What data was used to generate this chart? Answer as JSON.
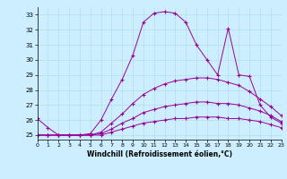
{
  "xlabel": "Windchill (Refroidissement éolien,°C)",
  "xlim": [
    0,
    23
  ],
  "ylim": [
    24.7,
    33.5
  ],
  "yticks": [
    25,
    26,
    27,
    28,
    29,
    30,
    31,
    32,
    33
  ],
  "xticks": [
    0,
    1,
    2,
    3,
    4,
    5,
    6,
    7,
    8,
    9,
    10,
    11,
    12,
    13,
    14,
    15,
    16,
    17,
    18,
    19,
    20,
    21,
    22,
    23
  ],
  "bg_color": "#cceeff",
  "line_color": "#990099",
  "line1_x": [
    0,
    1,
    2,
    3,
    4,
    5,
    6,
    7,
    8,
    9,
    10,
    11,
    12,
    13,
    14,
    15,
    16,
    17,
    18,
    19,
    20,
    21,
    22,
    23
  ],
  "line1_y": [
    26.1,
    25.5,
    25.0,
    25.0,
    25.0,
    25.1,
    26.0,
    27.4,
    28.7,
    30.3,
    32.5,
    33.1,
    33.2,
    33.1,
    32.5,
    31.0,
    30.0,
    29.0,
    32.1,
    29.0,
    28.9,
    27.0,
    26.2,
    25.8
  ],
  "line2_x": [
    0,
    1,
    2,
    3,
    4,
    5,
    6,
    7,
    8,
    9,
    10,
    11,
    12,
    13,
    14,
    15,
    16,
    17,
    18,
    19,
    20,
    21,
    22,
    23
  ],
  "line2_y": [
    25.0,
    25.0,
    25.0,
    25.0,
    25.0,
    25.0,
    25.2,
    25.8,
    26.4,
    27.1,
    27.7,
    28.1,
    28.4,
    28.6,
    28.7,
    28.8,
    28.8,
    28.7,
    28.5,
    28.3,
    27.9,
    27.4,
    26.9,
    26.3
  ],
  "line3_x": [
    0,
    1,
    2,
    3,
    4,
    5,
    6,
    7,
    8,
    9,
    10,
    11,
    12,
    13,
    14,
    15,
    16,
    17,
    18,
    19,
    20,
    21,
    22,
    23
  ],
  "line3_y": [
    25.0,
    25.0,
    25.0,
    25.0,
    25.0,
    25.0,
    25.1,
    25.4,
    25.8,
    26.1,
    26.5,
    26.7,
    26.9,
    27.0,
    27.1,
    27.2,
    27.2,
    27.1,
    27.1,
    27.0,
    26.8,
    26.6,
    26.3,
    25.9
  ],
  "line4_x": [
    0,
    1,
    2,
    3,
    4,
    5,
    6,
    7,
    8,
    9,
    10,
    11,
    12,
    13,
    14,
    15,
    16,
    17,
    18,
    19,
    20,
    21,
    22,
    23
  ],
  "line4_y": [
    25.0,
    25.0,
    25.0,
    25.0,
    25.0,
    25.0,
    25.0,
    25.2,
    25.4,
    25.6,
    25.8,
    25.9,
    26.0,
    26.1,
    26.1,
    26.2,
    26.2,
    26.2,
    26.1,
    26.1,
    26.0,
    25.9,
    25.7,
    25.5
  ]
}
